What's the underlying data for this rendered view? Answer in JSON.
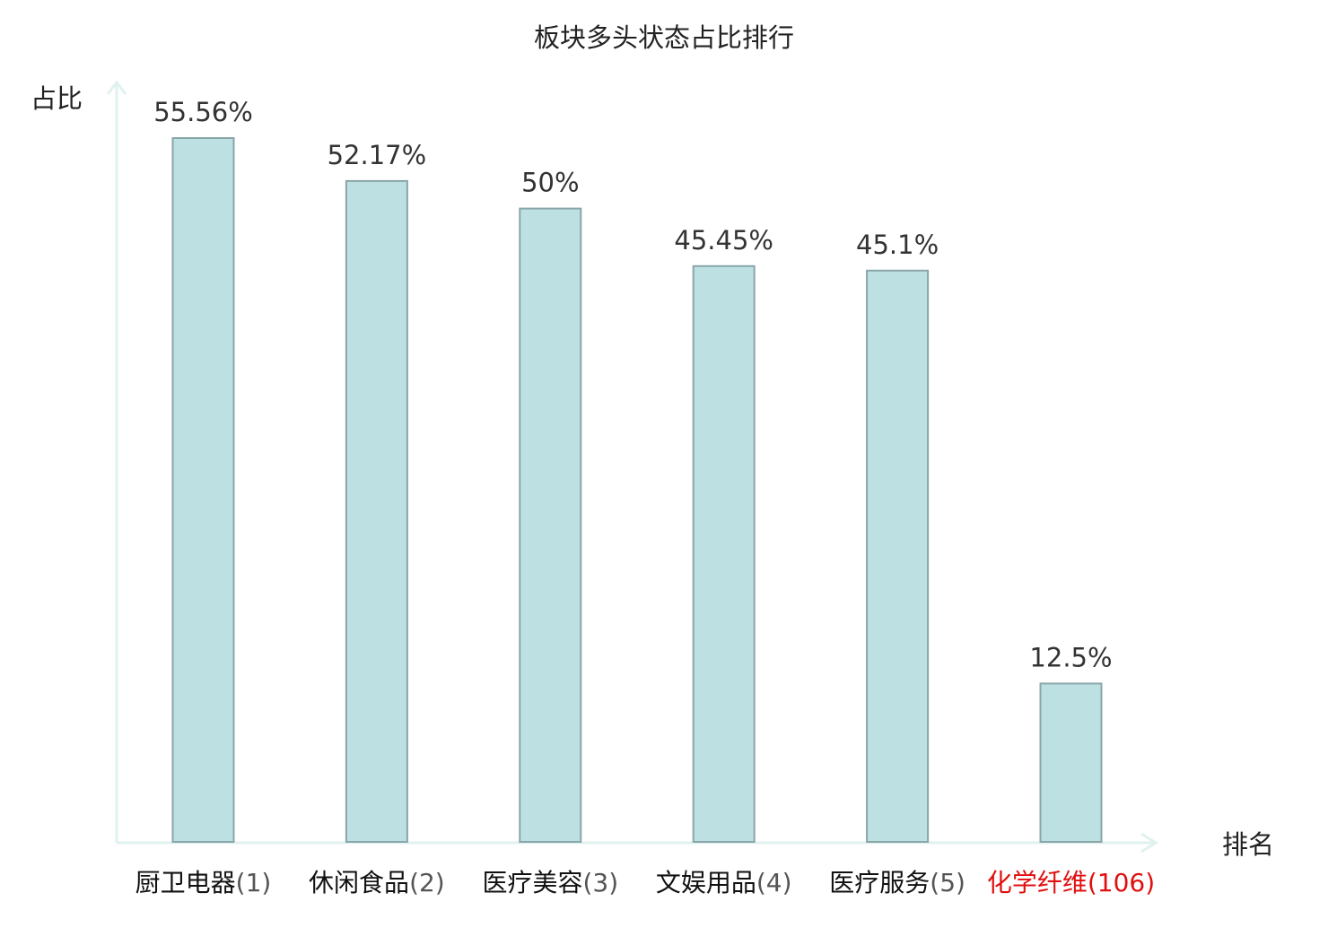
{
  "chart_data": {
    "type": "bar",
    "title": "板块多头状态占比排行",
    "ylabel": "占比",
    "xlabel": "排名",
    "ylim": [
      0,
      60
    ],
    "categories": [
      {
        "name": "厨卫电器",
        "rank": "(1)",
        "highlight": false
      },
      {
        "name": "休闲食品",
        "rank": "(2)",
        "highlight": false
      },
      {
        "name": "医疗美容",
        "rank": "(3)",
        "highlight": false
      },
      {
        "name": "文娱用品",
        "rank": "(4)",
        "highlight": false
      },
      {
        "name": "医疗服务",
        "rank": "(5)",
        "highlight": false
      },
      {
        "name": "化学纤维",
        "rank": "(106)",
        "highlight": true
      }
    ],
    "values": [
      55.56,
      52.17,
      50,
      45.45,
      45.1,
      12.5
    ],
    "value_labels": [
      "55.56%",
      "52.17%",
      "50%",
      "45.45%",
      "45.1%",
      "12.5%"
    ],
    "grid": false,
    "legend": "none"
  },
  "colors": {
    "bar_fill": "#bde1e3",
    "bar_stroke": "#8aa5a8",
    "axis": "#e0f2ef",
    "label_text": "#333333",
    "category_text": "#111111",
    "rank_text": "#555555",
    "highlight": "#e01010"
  }
}
